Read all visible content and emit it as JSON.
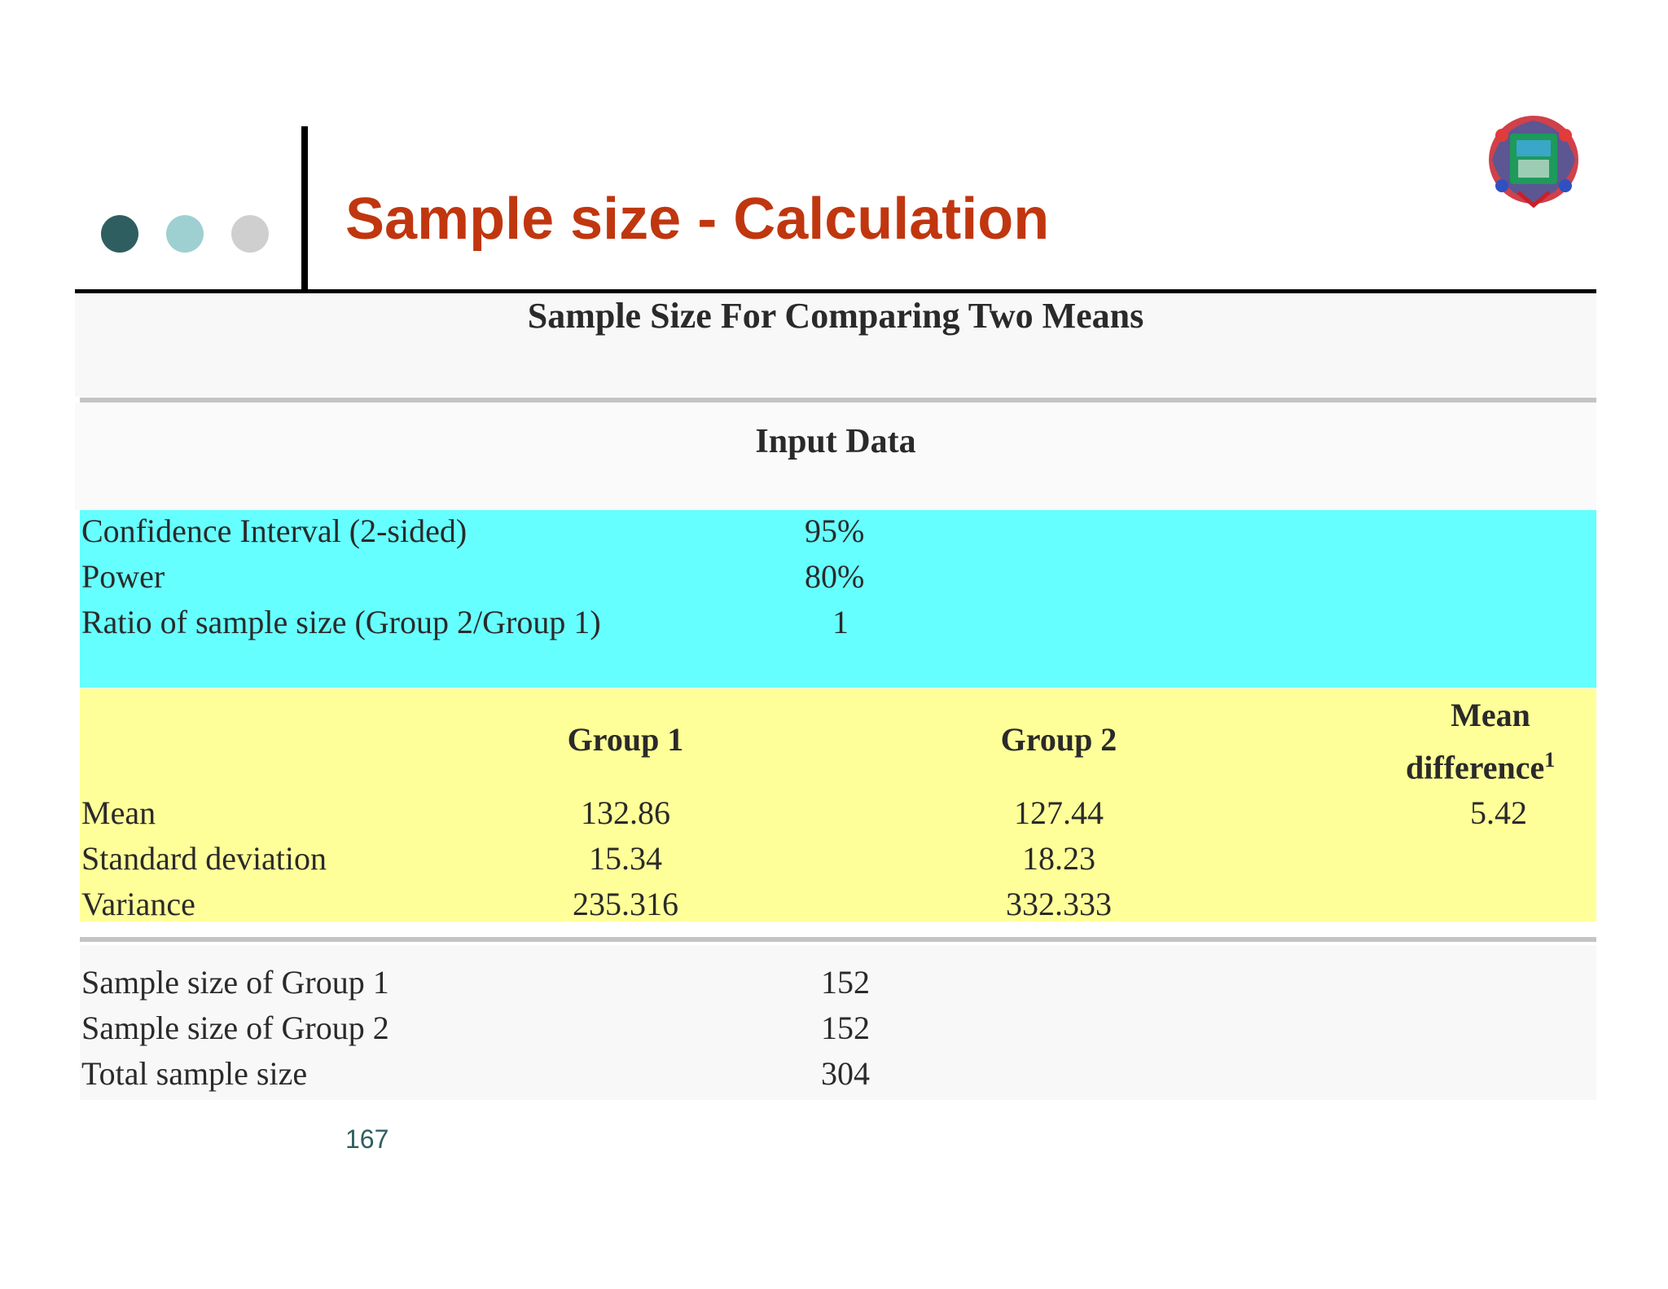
{
  "slide": {
    "title": "Sample size - Calculation",
    "page_number": "167"
  },
  "calculator": {
    "title": "Sample Size For Comparing Two Means",
    "input_heading": "Input Data",
    "inputs": [
      {
        "label": "Confidence Interval (2-sided)",
        "value": "95%"
      },
      {
        "label": "Power",
        "value": "80%"
      },
      {
        "label": "Ratio of sample size (Group 2/Group 1)",
        "value": "1"
      }
    ],
    "group_headers": {
      "group1": "Group 1",
      "group2": "Group 2",
      "mean_difference": "Mean",
      "mean_difference_line2": "difference",
      "mean_difference_footnote": "1"
    },
    "stats": [
      {
        "label": "Mean",
        "group1": "132.86",
        "group2": "127.44",
        "difference": "5.42"
      },
      {
        "label": "Standard deviation",
        "group1": "15.34",
        "group2": "18.23",
        "difference": ""
      },
      {
        "label": "Variance",
        "group1": "235.316",
        "group2": "332.333",
        "difference": ""
      }
    ],
    "results": [
      {
        "label": "Sample size of Group 1",
        "value": "152"
      },
      {
        "label": "Sample size of Group 2",
        "value": "152"
      },
      {
        "label": "Total sample size",
        "value": "304"
      }
    ]
  },
  "colors": {
    "title": "#c0360f",
    "input_band": "#66ffff",
    "group_band": "#ffff99",
    "dot_dark": "#2f5e60",
    "dot_light": "#9fd0d1",
    "dot_grey": "#cfcfcf"
  }
}
